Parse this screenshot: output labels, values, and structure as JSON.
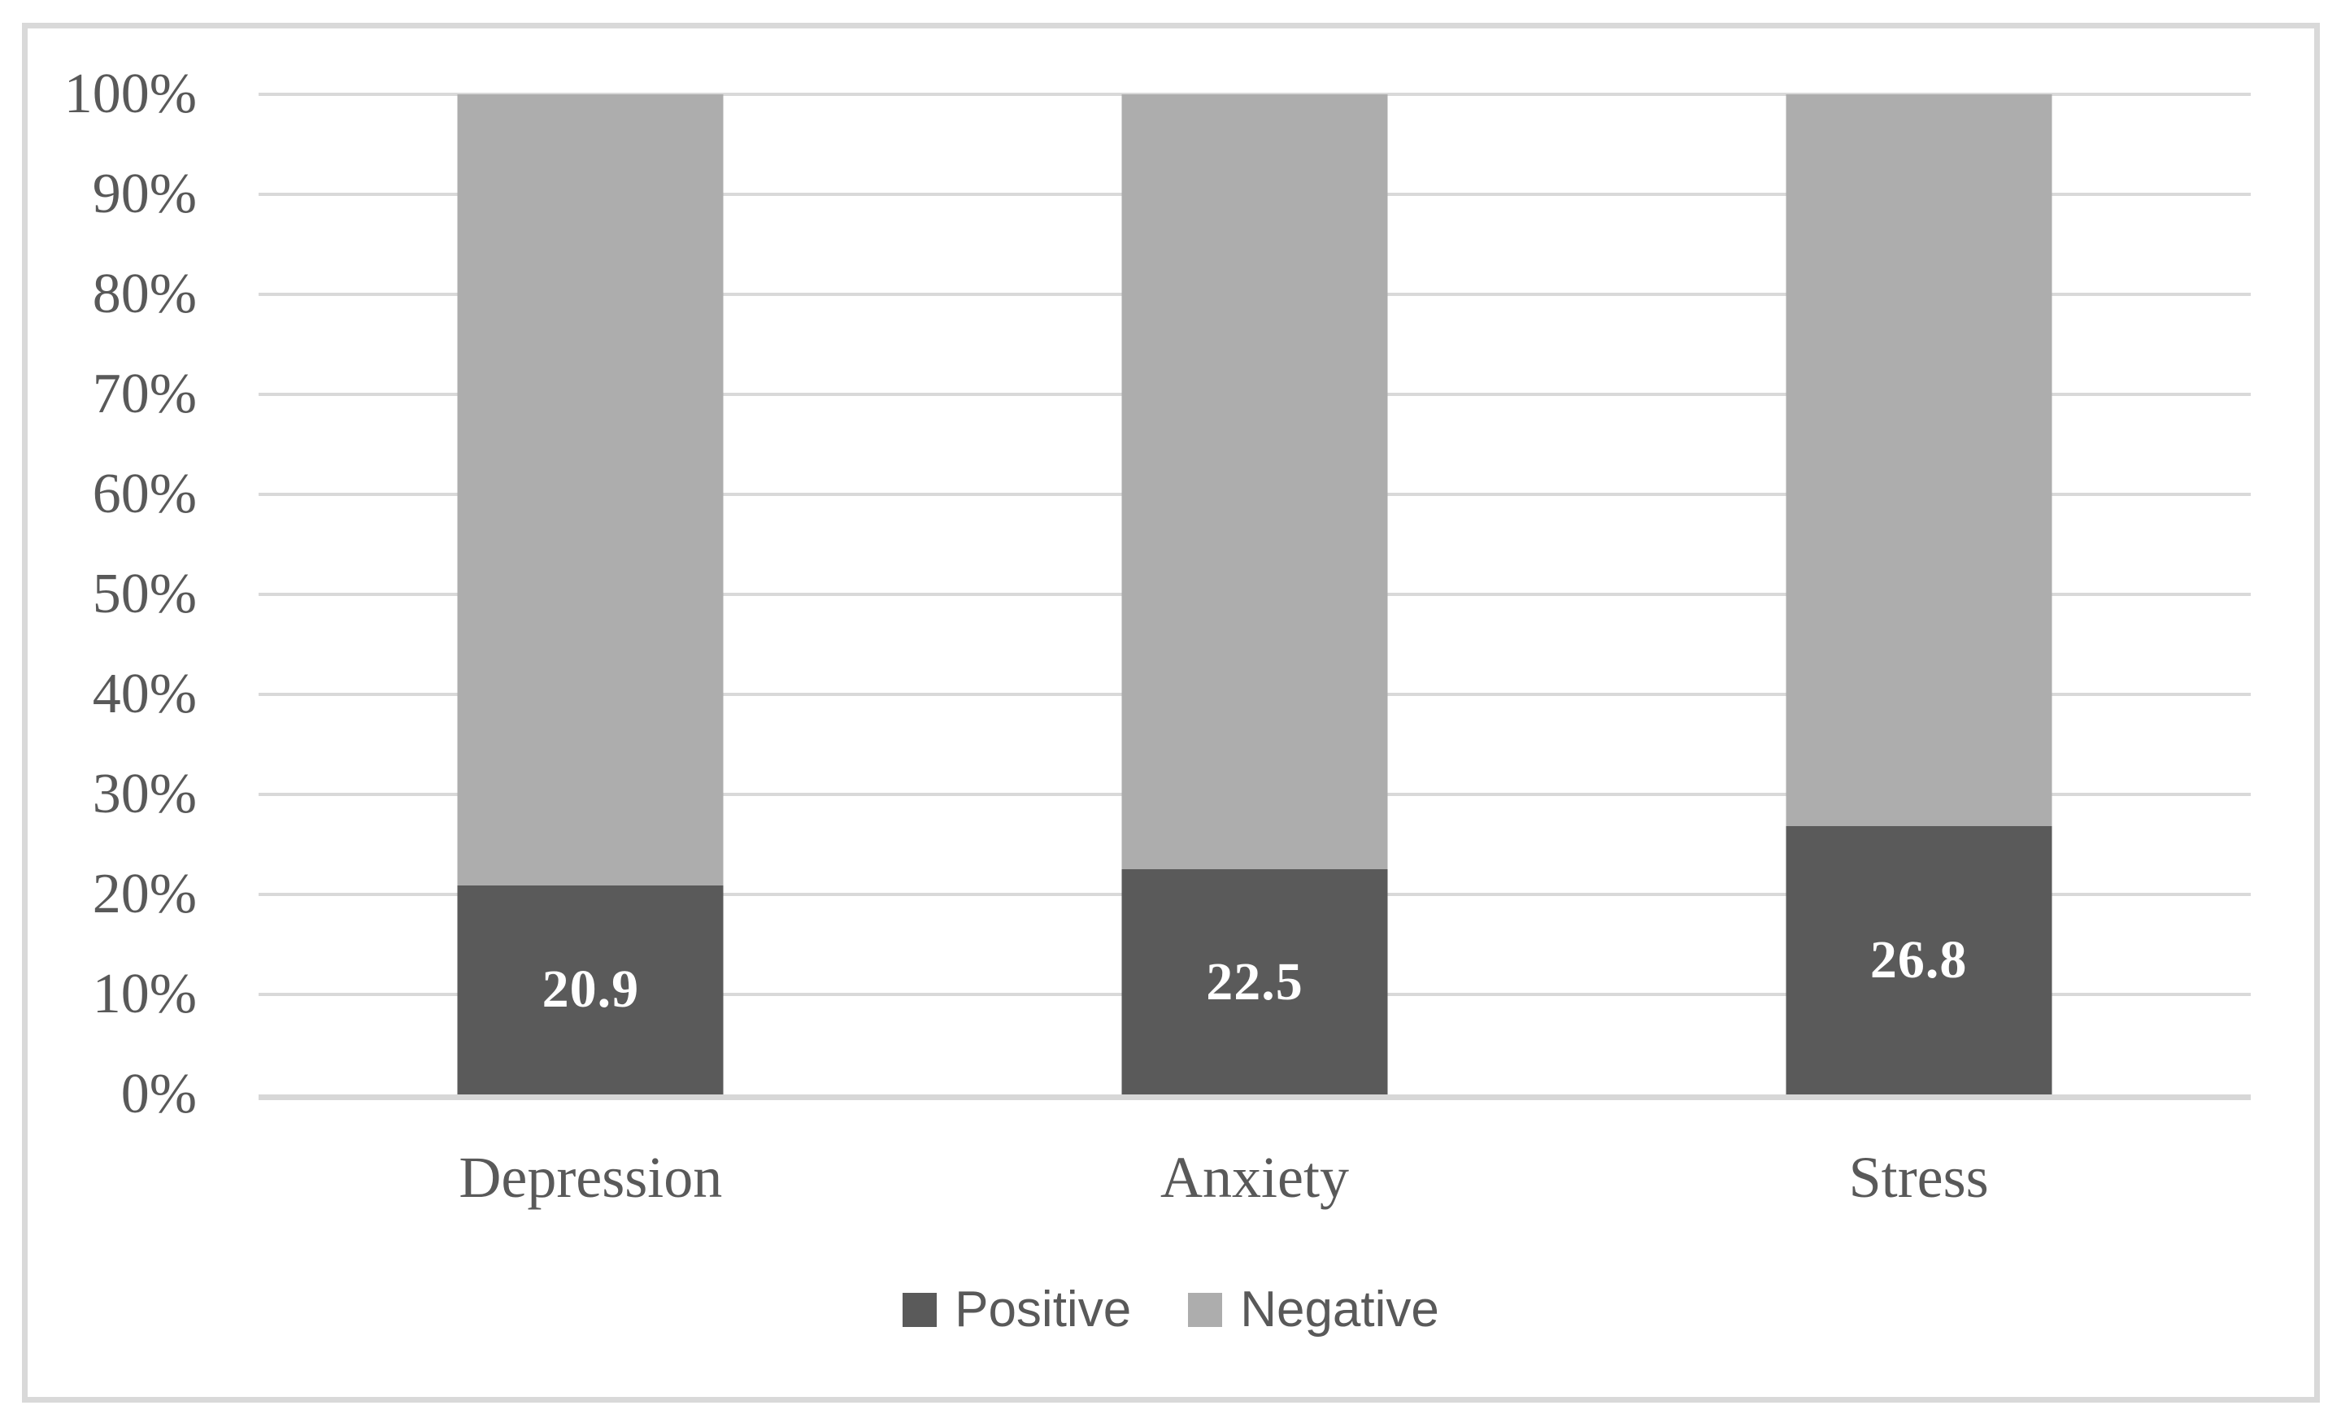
{
  "chart_data": {
    "type": "bar",
    "variant": "stacked-100-percent",
    "title": "",
    "categories": [
      "Depression",
      "Anxiety",
      "Stress"
    ],
    "series": [
      {
        "name": "Positive",
        "color": "#5a5a5a",
        "values": [
          20.9,
          22.5,
          26.8
        ],
        "data_labels": [
          "20.9",
          "22.5",
          "26.8"
        ],
        "data_label_color": "#ffffff"
      },
      {
        "name": "Negative",
        "color": "#adadad",
        "values": [
          79.1,
          77.5,
          73.2
        ],
        "data_labels": [
          "",
          "",
          ""
        ],
        "data_label_color": "#ffffff"
      }
    ],
    "y_axis": {
      "min": 0,
      "max": 100,
      "step": 10,
      "tick_labels": [
        "0%",
        "10%",
        "20%",
        "30%",
        "40%",
        "50%",
        "60%",
        "70%",
        "80%",
        "90%",
        "100%"
      ]
    },
    "x_axis": {
      "tick_labels": [
        "Depression",
        "Anxiety",
        "Stress"
      ]
    },
    "legend": {
      "position": "bottom",
      "items": [
        {
          "label": "Positive",
          "color": "#5a5a5a"
        },
        {
          "label": "Negative",
          "color": "#adadad"
        }
      ]
    },
    "grid": true
  },
  "style": {
    "background": "#ffffff",
    "frame_border_color": "#d9d9d9",
    "gridline_color": "#d9d9d9",
    "axis_line_color": "#d7d7d7",
    "text_color": "#595959"
  }
}
